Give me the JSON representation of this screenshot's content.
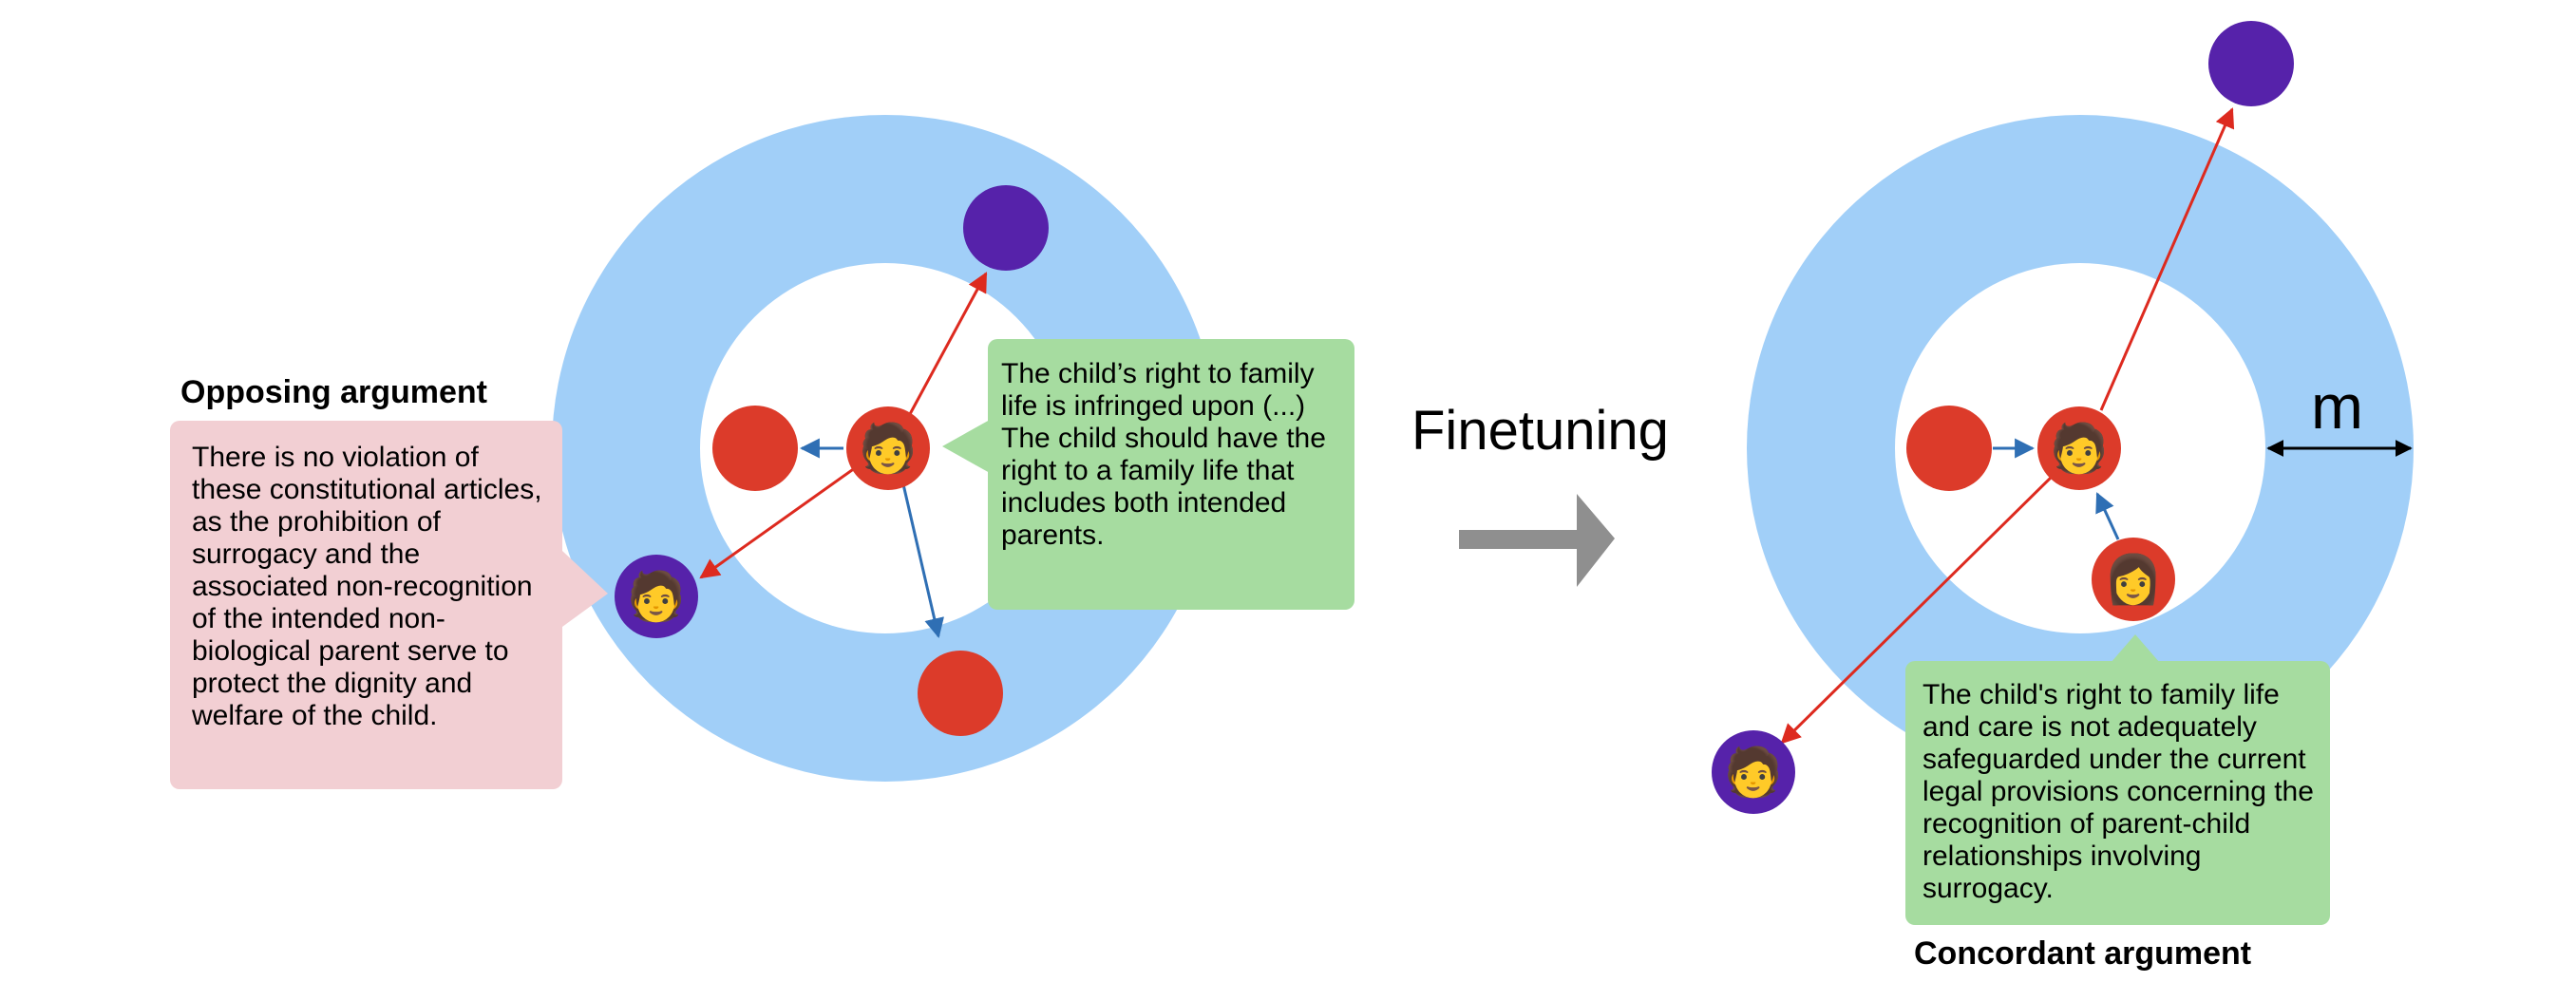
{
  "colors": {
    "ring": "#a1cff8",
    "red_node": "#dc3b2a",
    "purple_node": "#5622aa",
    "red_arrow": "#dd2a1f",
    "blue_arrow": "#2f6fb4",
    "gray_arrow": "#8f8f8f",
    "pink_bubble": "#f2cfd3",
    "green_bubble": "#a6dca0"
  },
  "icons": {
    "anchor_person": "person-emoji-icon",
    "opposing_person": "person-emoji-icon",
    "judge_person": "judge-emoji-icon"
  },
  "left_panel": {
    "heading": "Opposing argument",
    "opposing_text": "There is no violation of these constitutional articles, as the prohibition of surrogacy and the associated non-recognition of the intended non-biological parent serve to protect the dignity and welfare of the child.",
    "anchor_text_line1": "The child’s right to family life is infringed upon (...)",
    "anchor_text_line2": "The child should have the right to a family life that includes both intended parents."
  },
  "middle": {
    "label": "Finetuning"
  },
  "right_panel": {
    "margin_label": "m",
    "concordant_text": "The child's right to family life and care is not adequately safeguarded under the current legal provisions concerning the recognition of parent-child relationships involving surrogacy.",
    "heading": "Concordant argument"
  }
}
